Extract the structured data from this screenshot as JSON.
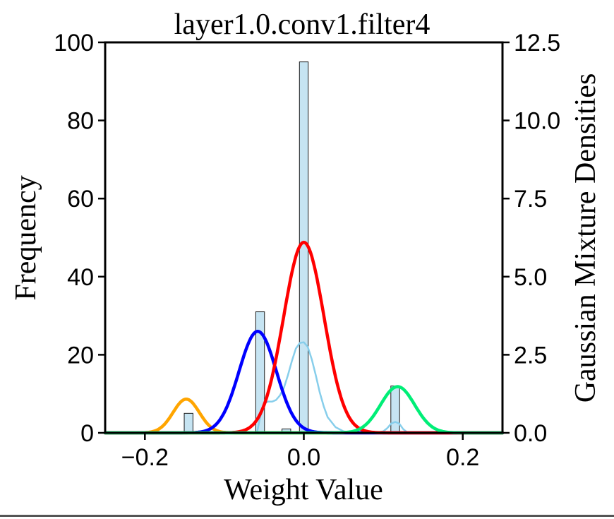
{
  "chart_data": {
    "type": "bar",
    "title": "layer1.0.conv1.filter4",
    "xlabel": "Weight Value",
    "ylabel": "Frequency",
    "y2label": "Gaussian Mixture Densities",
    "xlim": [
      -0.25,
      0.25
    ],
    "ylim": [
      0,
      100
    ],
    "y2lim": [
      0,
      12.5
    ],
    "xticks": [
      -0.2,
      0.0,
      0.2
    ],
    "xtick_labels": [
      "−0.2",
      "0.0",
      "0.2"
    ],
    "yticks": [
      0,
      20,
      40,
      60,
      80,
      100
    ],
    "ytick_labels": [
      "0",
      "20",
      "40",
      "60",
      "80",
      "100"
    ],
    "y2ticks": [
      0,
      2.5,
      5,
      7.5,
      10,
      12.5
    ],
    "y2tick_labels": [
      "0.0",
      "2.5",
      "5.0",
      "7.5",
      "10.0",
      "12.5"
    ],
    "grid": false,
    "histogram": {
      "bin_width": 0.011,
      "bar_color": "#c6e4f2",
      "edge_color": "#1a1a1a",
      "bins": [
        {
          "center": -0.145,
          "count": 5
        },
        {
          "center": -0.055,
          "count": 31
        },
        {
          "center": -0.022,
          "count": 1
        },
        {
          "center": 0.0,
          "count": 95
        },
        {
          "center": 0.115,
          "count": 12
        }
      ]
    },
    "series": [
      {
        "name": "component-orange",
        "color": "#ffa500",
        "mean": -0.148,
        "std": 0.0165,
        "peak": 1.08
      },
      {
        "name": "component-blue",
        "color": "#0000ff",
        "mean": -0.058,
        "std": 0.0235,
        "peak": 3.25
      },
      {
        "name": "component-red",
        "color": "#ff0000",
        "mean": 0.0,
        "std": 0.0255,
        "peak": 6.1
      },
      {
        "name": "component-green",
        "color": "#00ee77",
        "mean": 0.118,
        "std": 0.0215,
        "peak": 1.48
      },
      {
        "name": "kde-lightblue",
        "color": "#87ceeb",
        "x": [
          -0.25,
          -0.2,
          -0.16,
          -0.14,
          -0.12,
          -0.1,
          -0.09,
          -0.08,
          -0.075,
          -0.07,
          -0.066,
          -0.062,
          -0.059,
          -0.055,
          -0.05,
          -0.045,
          -0.04,
          -0.035,
          -0.03,
          -0.025,
          -0.02,
          -0.015,
          -0.01,
          -0.005,
          0.0,
          0.005,
          0.01,
          0.015,
          0.02,
          0.025,
          0.03,
          0.04,
          0.05,
          0.06,
          0.07,
          0.08,
          0.09,
          0.1,
          0.105,
          0.11,
          0.115,
          0.12,
          0.125,
          0.13,
          0.14,
          0.16,
          0.2,
          0.25
        ],
        "y": [
          0,
          0,
          0,
          0,
          0,
          0,
          0,
          0,
          0,
          0,
          0,
          0,
          0,
          0.5,
          0.95,
          1.0,
          1.0,
          1.05,
          1.2,
          1.45,
          1.85,
          2.3,
          2.7,
          2.88,
          2.9,
          2.75,
          2.35,
          1.85,
          1.3,
          0.85,
          0.5,
          0.18,
          0.05,
          0,
          0,
          0,
          0,
          0.05,
          0.15,
          0.3,
          0.35,
          0.3,
          0.12,
          0.02,
          0,
          0,
          0,
          0
        ]
      }
    ]
  }
}
